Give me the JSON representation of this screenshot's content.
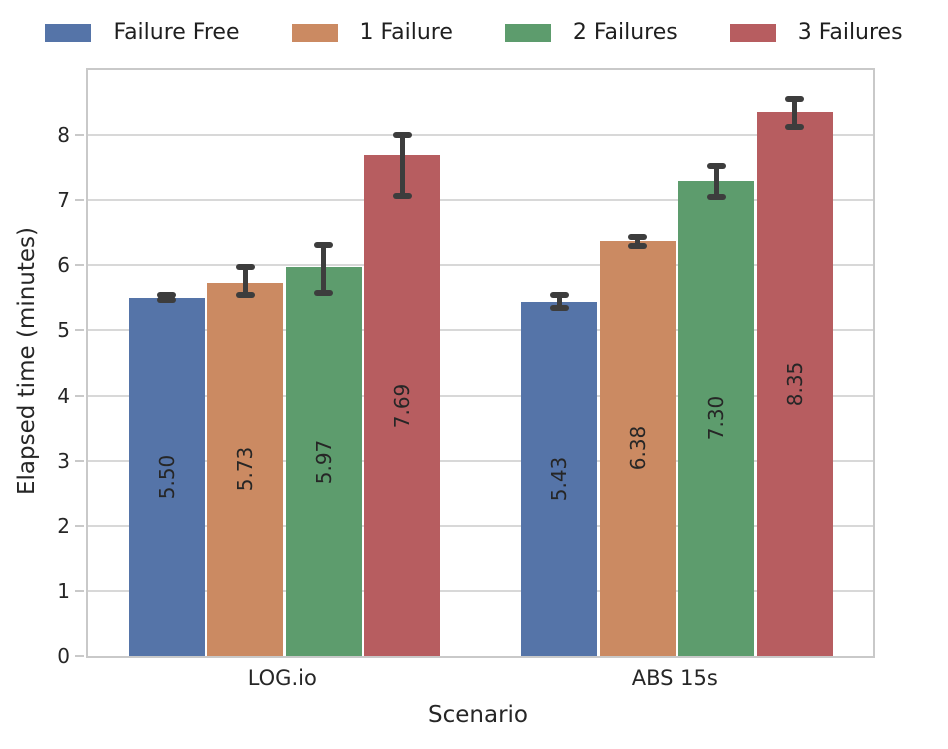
{
  "chart_data": {
    "type": "bar",
    "title": "",
    "xlabel": "Scenario",
    "ylabel": "Elapsed time (minutes)",
    "ylim": [
      0,
      9
    ],
    "yticks": [
      0,
      1,
      2,
      3,
      4,
      5,
      6,
      7,
      8
    ],
    "grid": true,
    "legend_position": "top",
    "categories": [
      "LOG.io",
      "ABS 15s"
    ],
    "series": [
      {
        "name": "Failure Free",
        "color": "#5574A8",
        "values": [
          5.5,
          5.43
        ],
        "value_labels": [
          "5.50",
          "5.43"
        ],
        "error_ranges": [
          [
            5.46,
            5.54
          ],
          [
            5.35,
            5.54
          ]
        ]
      },
      {
        "name": "1 Failure",
        "color": "#CB8A62",
        "values": [
          5.73,
          6.38
        ],
        "value_labels": [
          "5.73",
          "6.38"
        ],
        "error_ranges": [
          [
            5.54,
            5.98
          ],
          [
            6.3,
            6.44
          ]
        ]
      },
      {
        "name": "2 Failures",
        "color": "#5D9C6D",
        "values": [
          5.97,
          7.3
        ],
        "value_labels": [
          "5.97",
          "7.30"
        ],
        "error_ranges": [
          [
            5.58,
            6.31
          ],
          [
            7.05,
            7.53
          ]
        ]
      },
      {
        "name": "3 Failures",
        "color": "#B75D60",
        "values": [
          7.69,
          8.35
        ],
        "value_labels": [
          "7.69",
          "8.35"
        ],
        "error_ranges": [
          [
            7.07,
            8.0
          ],
          [
            8.13,
            8.56
          ]
        ]
      }
    ],
    "error_bar_color": "#3d3d3d",
    "gridline_color": "#d8d8d8",
    "spine_color": "#c9c9c9"
  }
}
